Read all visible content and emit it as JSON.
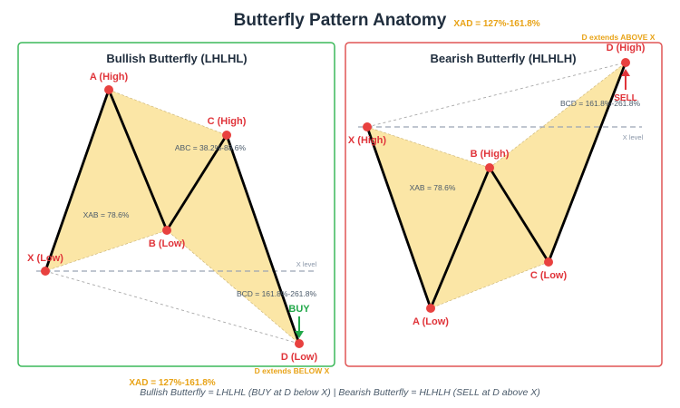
{
  "title": "Butterfly Pattern Anatomy",
  "bullish": {
    "panel_title": "Bullish Butterfly (LHLHL)",
    "labels": {
      "x": "X (Low)",
      "a": "A (High)",
      "b": "B (Low)",
      "c": "C (High)",
      "d": "D (Low)"
    },
    "xab": "XAB = 78.6%",
    "abc": "ABC = 38.2%-88.6%",
    "bcd": "BCD = 161.8%-261.8%",
    "xad": "XAD = 127%-161.8%",
    "x_level": "X level",
    "signal": "BUY",
    "d_note": "D extends BELOW X"
  },
  "bearish": {
    "panel_title": "Bearish Butterfly (HLHLH)",
    "labels": {
      "x": "X (High)",
      "a": "A (Low)",
      "b": "B (High)",
      "c": "C (Low)",
      "d": "D (High)"
    },
    "xab": "XAB = 78.6%",
    "bcd": "BCD = 161.8%-261.8%",
    "xad": "XAD = 127%-161.8%",
    "x_level": "X level",
    "signal": "SELL",
    "d_note": "D extends ABOVE X"
  },
  "caption": "Bullish Butterfly = LHLHL (BUY at D below X) | Bearish Butterfly = HLHLH (SELL at D above X)",
  "colors": {
    "bullish_border": "#3cb95a",
    "bearish_border": "#e05555",
    "fill": "#fbe6a6",
    "point": "#e8413f",
    "line": "#000000",
    "buy": "#22a84a",
    "sell": "#e0343a",
    "accent": "#e8a317"
  }
}
